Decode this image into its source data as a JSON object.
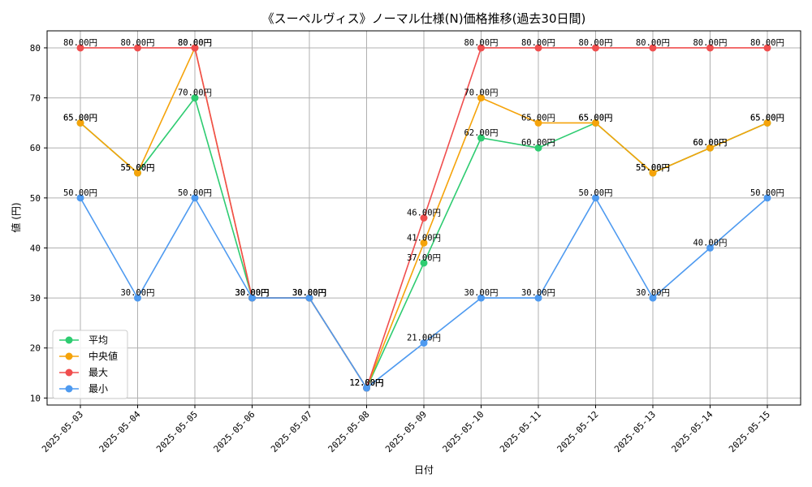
{
  "chart_data": {
    "type": "line",
    "title": "《スーペルヴィス》ノーマル仕様(N)価格推移(過去30日間)",
    "xlabel": "日付",
    "ylabel": "値 (円)",
    "ylim": [
      8.6,
      83.4
    ],
    "yticks": [
      10,
      20,
      30,
      40,
      50,
      60,
      70,
      80
    ],
    "grid": true,
    "legend_position": "lower-left",
    "value_label_suffix": "円",
    "categories": [
      "2025-05-03",
      "2025-05-04",
      "2025-05-05",
      "2025-05-06",
      "2025-05-07",
      "2025-05-08",
      "2025-05-09",
      "2025-05-10",
      "2025-05-11",
      "2025-05-12",
      "2025-05-13",
      "2025-05-14",
      "2025-05-15"
    ],
    "series": [
      {
        "name": "平均",
        "color": "#2ecc71",
        "values": [
          65,
          55,
          70,
          30,
          30,
          12,
          37,
          62,
          60,
          65,
          55,
          60,
          65
        ]
      },
      {
        "name": "中央値",
        "color": "#f5a30a",
        "values": [
          65,
          55,
          80,
          30,
          30,
          12,
          41,
          70,
          65,
          65,
          55,
          60,
          65
        ]
      },
      {
        "name": "最大",
        "color": "#f04e4e",
        "values": [
          80,
          80,
          80,
          30,
          30,
          12,
          46,
          80,
          80,
          80,
          80,
          80,
          80
        ]
      },
      {
        "name": "最小",
        "color": "#4e9af0",
        "values": [
          50,
          30,
          50,
          30,
          30,
          12,
          21,
          30,
          30,
          50,
          30,
          40,
          50
        ]
      }
    ]
  }
}
